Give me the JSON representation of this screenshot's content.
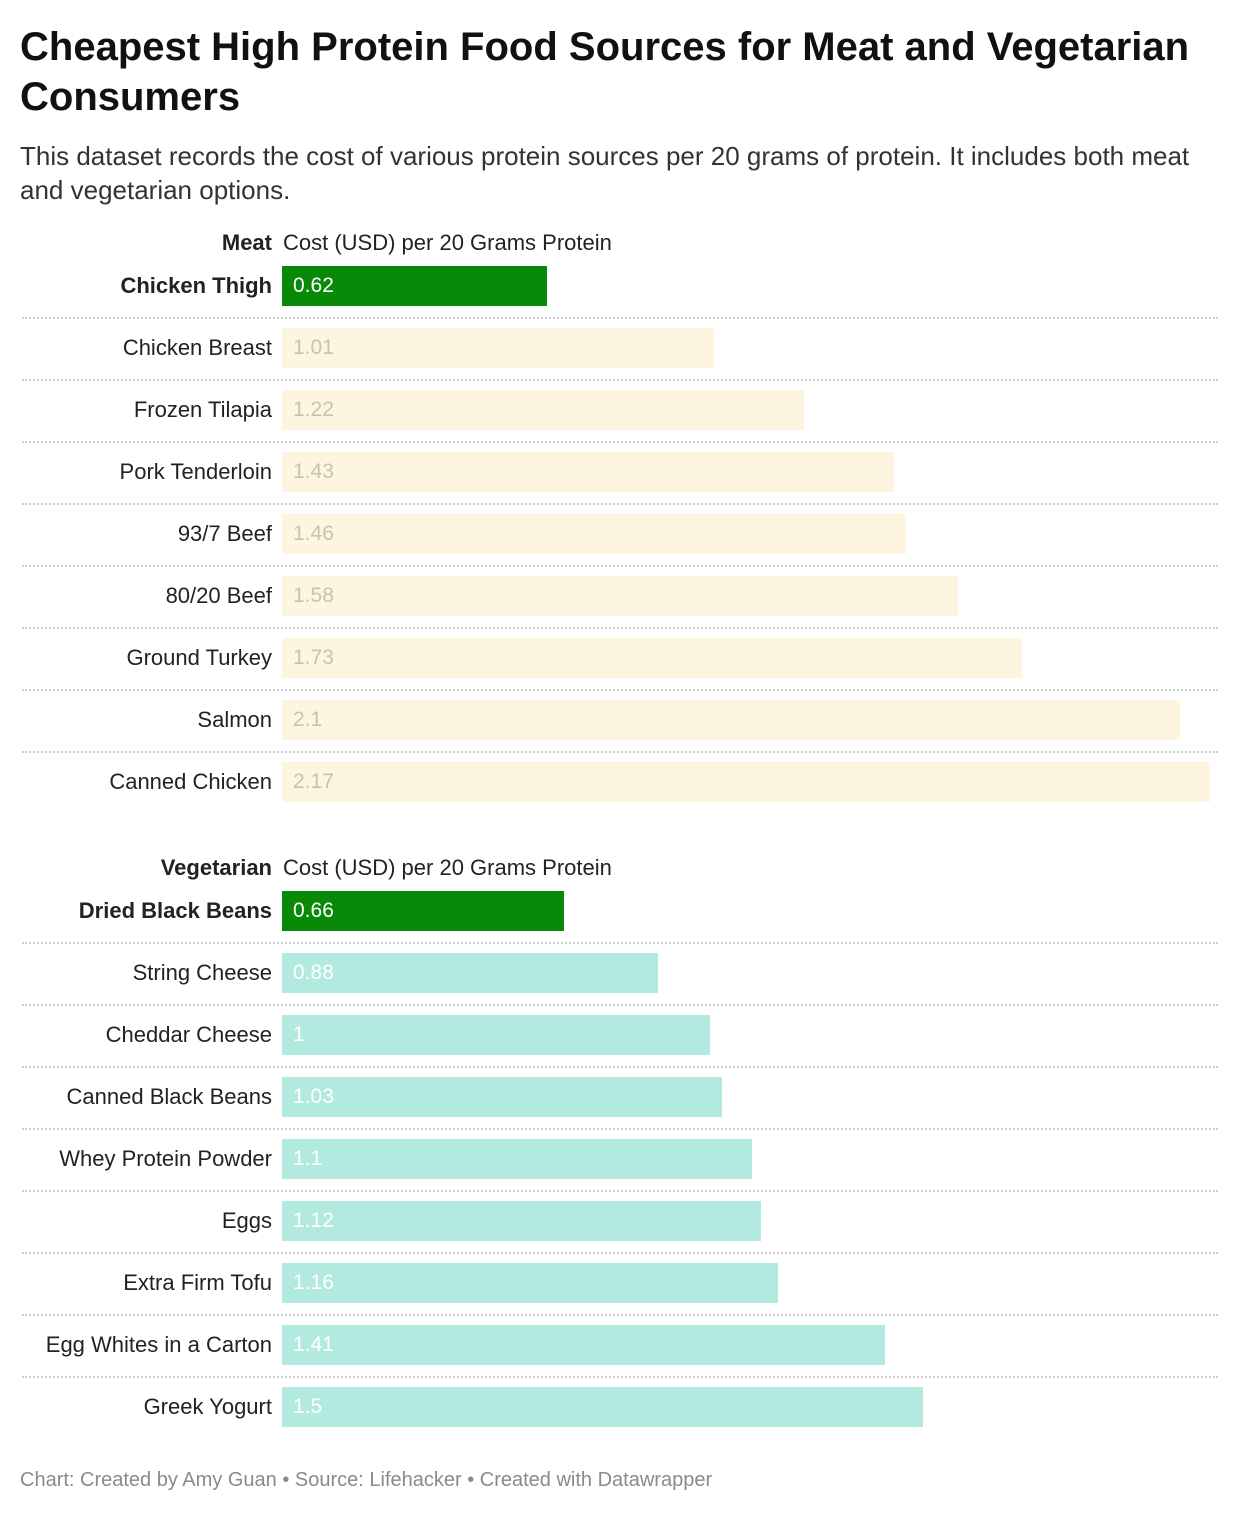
{
  "title": "Cheapest High Protein Food Sources for Meat and Vegetarian Consumers",
  "subtitle": "This dataset records the cost of various protein sources per 20 grams of protein. It includes both meat and vegetarian options.",
  "footer": "Chart: Created by Amy Guan • Source: Lifehacker • Created with Datawrapper",
  "colors": {
    "highlight": "#088a08",
    "meat_bar": "#fef5e1",
    "vegetarian_bar": "#b3eae0",
    "highlight_text": "#ffffff",
    "meat_text": "#c9c1b1",
    "vegetarian_text": "#ffffff"
  },
  "chart_data": [
    {
      "type": "bar",
      "orientation": "horizontal",
      "group": "Meat",
      "value_label": "Cost (USD) per 20 Grams Protein",
      "categories": [
        "Chicken Thigh",
        "Chicken Breast",
        "Frozen Tilapia",
        "Pork Tenderloin",
        "93/7 Beef",
        "80/20 Beef",
        "Ground Turkey",
        "Salmon",
        "Canned Chicken"
      ],
      "values": [
        0.62,
        1.01,
        1.22,
        1.43,
        1.46,
        1.58,
        1.73,
        2.1,
        2.17
      ],
      "value_labels": [
        "0.62",
        "1.01",
        "1.22",
        "1.43",
        "1.46",
        "1.58",
        "1.73",
        "2.1",
        "2.17"
      ],
      "highlighted": "Chicken Thigh",
      "xlim": [
        0,
        2.17
      ]
    },
    {
      "type": "bar",
      "orientation": "horizontal",
      "group": "Vegetarian",
      "value_label": "Cost (USD) per 20 Grams Protein",
      "categories": [
        "Dried Black Beans",
        "String Cheese",
        "Cheddar Cheese",
        "Canned Black Beans",
        "Whey Protein Powder",
        "Eggs",
        "Extra Firm Tofu",
        "Egg Whites in a Carton",
        "Greek Yogurt"
      ],
      "values": [
        0.66,
        0.88,
        1,
        1.03,
        1.1,
        1.12,
        1.16,
        1.41,
        1.5
      ],
      "value_labels": [
        "0.66",
        "0.88",
        "1",
        "1.03",
        "1.1",
        "1.12",
        "1.16",
        "1.41",
        "1.5"
      ],
      "highlighted": "Dried Black Beans",
      "xlim": [
        0,
        2.17
      ]
    }
  ]
}
